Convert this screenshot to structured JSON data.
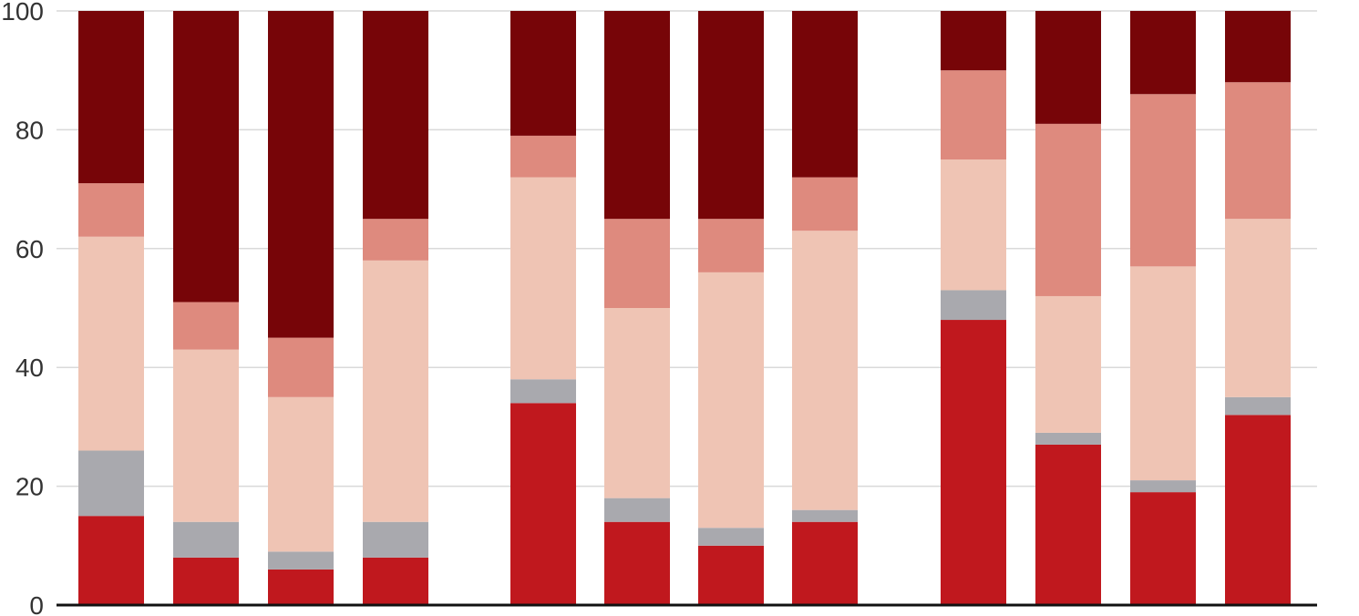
{
  "chart_data": {
    "type": "bar",
    "stacked": true,
    "title": "",
    "xlabel": "",
    "ylabel": "",
    "ylim": [
      0,
      100
    ],
    "yticks": [
      0,
      20,
      40,
      60,
      80,
      100
    ],
    "grid": true,
    "legend": "none",
    "groups": [
      [
        0,
        1,
        2,
        3
      ],
      [
        4,
        5,
        6,
        7
      ],
      [
        8,
        9,
        10,
        11
      ]
    ],
    "categories": [
      "",
      "",
      "",
      "",
      "",
      "",
      "",
      "",
      "",
      "",
      "",
      ""
    ],
    "series": [
      {
        "color": "#c0181e",
        "values": [
          15,
          8,
          6,
          8,
          34,
          14,
          10,
          14,
          48,
          27,
          19,
          32
        ]
      },
      {
        "color": "#a9a9ae",
        "values": [
          11,
          6,
          3,
          6,
          4,
          4,
          3,
          2,
          5,
          2,
          2,
          3
        ]
      },
      {
        "color": "#efc4b4",
        "values": [
          36,
          29,
          26,
          44,
          34,
          32,
          43,
          47,
          22,
          23,
          36,
          30
        ]
      },
      {
        "color": "#de8a7e",
        "values": [
          9,
          8,
          10,
          7,
          7,
          15,
          9,
          9,
          15,
          29,
          29,
          23
        ]
      },
      {
        "color": "#770508",
        "values": [
          29,
          49,
          55,
          35,
          21,
          35,
          35,
          28,
          10,
          19,
          14,
          12
        ]
      }
    ]
  }
}
